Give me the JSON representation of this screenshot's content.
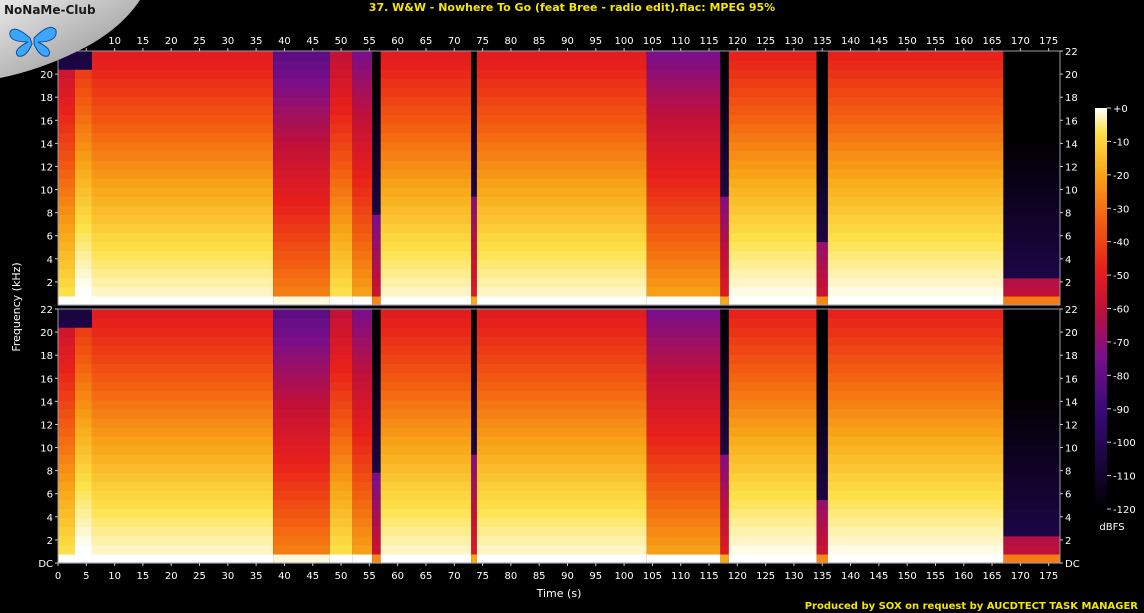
{
  "title": "37. W&W - Nowhere To Go (feat Bree - radio edit).flac: MPEG 95%",
  "logo_text": "NoNaMe-Club",
  "footer": "Produced by SOX on request by AUCDTECT TASK MANAGER",
  "colors": {
    "background": "#000000",
    "title": "#f5e600",
    "axis_text": "#ffffff",
    "palette": [
      "#000000",
      "#1a0540",
      "#3a0a7a",
      "#7a0f8a",
      "#c0103a",
      "#e8201a",
      "#f36010",
      "#f8a818",
      "#fde24a",
      "#ffffff"
    ]
  },
  "chart_data": {
    "type": "heatmap",
    "xlabel": "Time (s)",
    "ylabel": "Frequency (kHz)",
    "x_ticks": [
      "0",
      "5",
      "10",
      "15",
      "20",
      "25",
      "30",
      "35",
      "40",
      "45",
      "50",
      "55",
      "60",
      "65",
      "70",
      "75",
      "80",
      "85",
      "90",
      "95",
      "100",
      "105",
      "110",
      "115",
      "120",
      "125",
      "130",
      "135",
      "140",
      "145",
      "150",
      "155",
      "160",
      "165",
      "170",
      "175"
    ],
    "x_range": [
      0,
      177
    ],
    "y_ticks": [
      "DC",
      "2",
      "4",
      "6",
      "8",
      "10",
      "12",
      "14",
      "16",
      "18",
      "20",
      "22"
    ],
    "y_range_khz": [
      0,
      22
    ],
    "channels": 2,
    "colorbar": {
      "unit": "dBFS",
      "ticks": [
        "+0",
        "-10",
        "-20",
        "-30",
        "-40",
        "-50",
        "-60",
        "-70",
        "-80",
        "-90",
        "-100",
        "-110",
        "-120"
      ],
      "range": [
        -120,
        0
      ]
    },
    "segments": [
      {
        "start": 0,
        "end": 3,
        "level": 0.62,
        "cutoff_khz": 21
      },
      {
        "start": 3,
        "end": 6,
        "level": 0.74,
        "cutoff_khz": 21
      },
      {
        "start": 6,
        "end": 38,
        "level": 0.7,
        "cutoff_khz": 22
      },
      {
        "start": 38,
        "end": 48,
        "level": 0.45,
        "cutoff_khz": 22
      },
      {
        "start": 48,
        "end": 52,
        "level": 0.62,
        "cutoff_khz": 22
      },
      {
        "start": 52,
        "end": 55.5,
        "level": 0.5,
        "cutoff_khz": 22
      },
      {
        "start": 55.5,
        "end": 57,
        "level": 0.2,
        "cutoff_khz": 8
      },
      {
        "start": 57,
        "end": 73,
        "level": 0.7,
        "cutoff_khz": 22
      },
      {
        "start": 73,
        "end": 74,
        "level": 0.25,
        "cutoff_khz": 10
      },
      {
        "start": 74,
        "end": 104,
        "level": 0.7,
        "cutoff_khz": 22
      },
      {
        "start": 104,
        "end": 117,
        "level": 0.5,
        "cutoff_khz": 22
      },
      {
        "start": 117,
        "end": 118.5,
        "level": 0.25,
        "cutoff_khz": 10
      },
      {
        "start": 118.5,
        "end": 134,
        "level": 0.72,
        "cutoff_khz": 22
      },
      {
        "start": 134,
        "end": 136,
        "level": 0.2,
        "cutoff_khz": 6
      },
      {
        "start": 136,
        "end": 167,
        "level": 0.72,
        "cutoff_khz": 22
      },
      {
        "start": 167,
        "end": 177,
        "level": 0.18,
        "cutoff_khz": 3
      }
    ]
  }
}
